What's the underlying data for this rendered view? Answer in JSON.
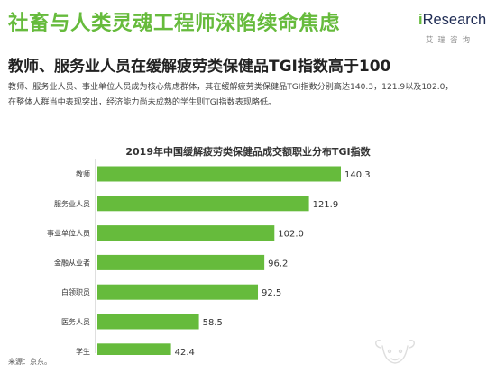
{
  "header": {
    "title": "社畜与人类灵魂工程师深陷续命焦虑",
    "subtitle": "教师、服务业人员在缓解疲劳类保健品TGI指数高于100",
    "description_line1": "教师、服务业人员、事业单位人员成为核心焦虑群体，其在缓解疲劳类保健品TGI指数分别高达140.3，121.9以及102.0，",
    "description_line2": "在整体人群当中表现突出，经济能力尚未成熟的学生则TGI指数表现略低。"
  },
  "logo": {
    "brand_i": "i",
    "brand_rest": "Research",
    "subtitle_cn": "艾瑞咨询"
  },
  "source": "来源：京东。",
  "colors": {
    "accent": "#66bb3c",
    "bar": "#66bb3c"
  },
  "chart_data": {
    "type": "bar",
    "orientation": "horizontal",
    "title": "2019年中国缓解疲劳类保健品成交额职业分布TGI指数",
    "categories": [
      "教师",
      "服务业人员",
      "事业单位人员",
      "金融从业者",
      "白领职员",
      "医务人员",
      "学生"
    ],
    "values": [
      140.3,
      121.9,
      102.0,
      96.2,
      92.5,
      58.5,
      42.4
    ],
    "value_labels": [
      "140.3",
      "121.9",
      "102.0",
      "96.2",
      "92.5",
      "58.5",
      "42.4"
    ],
    "xlim": [
      0,
      150
    ],
    "grid": false,
    "legend": "none"
  }
}
